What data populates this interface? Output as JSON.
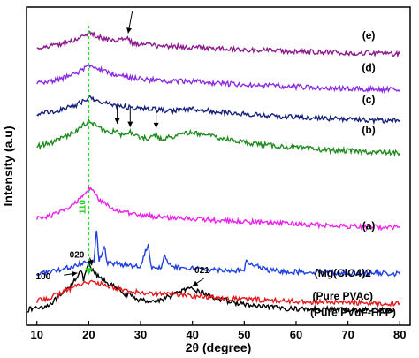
{
  "chart_data": {
    "type": "line",
    "xlabel": "2θ (degree)",
    "ylabel": "Intensity (a.u)",
    "xlim": [
      8,
      82
    ],
    "xticks": [
      10,
      20,
      30,
      40,
      50,
      60,
      70,
      80
    ],
    "y_ticks_shown": false,
    "grid": false,
    "legend": "none",
    "series": [
      {
        "name": "(Pure PVdF-HFP)",
        "color": "#000000",
        "x": [
          8,
          12,
          15,
          17,
          18.4,
          19,
          20,
          21,
          22,
          24,
          27,
          30,
          33,
          36,
          38,
          40,
          42,
          45,
          48,
          50,
          53,
          56,
          60,
          65,
          70,
          75,
          79
        ],
        "y": [
          0.2,
          0.6,
          1.6,
          2.8,
          3.8,
          3.0,
          4.4,
          3.6,
          3.2,
          2.6,
          1.7,
          1.1,
          1.0,
          1.5,
          2.0,
          2.1,
          1.8,
          1.2,
          0.9,
          0.7,
          0.5,
          0.4,
          0.3,
          0.3,
          0.2,
          0.2,
          0.1
        ]
      },
      {
        "name": "(Pure PVAc)",
        "color": "#e41a1c",
        "x": [
          10,
          14,
          17,
          19,
          20,
          21,
          23,
          26,
          30,
          35,
          40,
          45,
          50,
          55,
          60,
          65,
          70,
          75,
          80
        ],
        "y": [
          1.0,
          1.6,
          2.3,
          2.7,
          2.8,
          2.7,
          2.5,
          2.1,
          1.8,
          1.7,
          1.5,
          1.3,
          1.2,
          1.1,
          1.0,
          0.9,
          0.9,
          0.8,
          0.8
        ]
      },
      {
        "name": "(Mg(ClO4)2",
        "color": "#1f3fe0",
        "x": [
          10,
          14,
          17,
          19,
          20,
          21,
          21.5,
          22,
          23,
          23.5,
          24,
          26,
          28,
          30,
          31.5,
          32,
          33,
          34,
          34.5,
          36,
          40,
          45,
          50,
          50.2,
          55,
          60,
          65,
          70,
          75,
          80
        ],
        "y": [
          3.5,
          3.8,
          4.2,
          4.6,
          4.7,
          4.6,
          7.6,
          4.6,
          6.1,
          4.6,
          4.5,
          4.4,
          4.3,
          4.2,
          6.4,
          4.2,
          4.2,
          4.1,
          5.2,
          4.1,
          4.0,
          3.9,
          3.8,
          4.6,
          3.8,
          3.7,
          3.7,
          3.6,
          3.6,
          3.5
        ]
      },
      {
        "name": "(a)",
        "color": "#ee22ee",
        "x": [
          10,
          13,
          16,
          18,
          19,
          20,
          21,
          22,
          24,
          27,
          30,
          35,
          40,
          45,
          50,
          55,
          60,
          65,
          70,
          75,
          80
        ],
        "y": [
          8.6,
          8.9,
          9.5,
          10.3,
          10.9,
          11.4,
          11.0,
          10.3,
          9.6,
          9.1,
          8.9,
          8.7,
          8.6,
          8.4,
          8.3,
          8.2,
          8.1,
          8.0,
          7.9,
          7.8,
          7.8
        ]
      },
      {
        "name": "(b)",
        "color": "#1f8c1f",
        "x": [
          10,
          13,
          16,
          18,
          19,
          20,
          21,
          22,
          24,
          25.5,
          26,
          28,
          30,
          32,
          33,
          33.5,
          35,
          38,
          40,
          42,
          45,
          50,
          55,
          60,
          65,
          70,
          75,
          80
        ],
        "y": [
          15.2,
          15.6,
          16.2,
          16.8,
          17.2,
          17.5,
          17.3,
          16.9,
          16.4,
          16.8,
          16.3,
          16.5,
          16.0,
          16.0,
          16.4,
          15.9,
          16.0,
          16.3,
          16.5,
          16.3,
          16.0,
          15.6,
          15.3,
          15.1,
          14.9,
          14.8,
          14.7,
          14.6
        ]
      },
      {
        "name": "(c)",
        "color": "#15207c",
        "x": [
          10,
          14,
          17,
          19,
          20,
          21,
          23,
          26,
          30,
          35,
          40,
          45,
          50,
          55,
          60,
          65,
          70,
          75,
          80
        ],
        "y": [
          18.2,
          18.5,
          18.9,
          19.4,
          19.7,
          19.5,
          19.2,
          18.9,
          18.7,
          18.5,
          18.6,
          18.4,
          18.2,
          18.0,
          17.9,
          17.8,
          17.7,
          17.6,
          17.6
        ]
      },
      {
        "name": "(d)",
        "color": "#8a2be2",
        "x": [
          10,
          14,
          17,
          19,
          20,
          21,
          23,
          26,
          30,
          35,
          40,
          45,
          50,
          55,
          60,
          65,
          70,
          75,
          80
        ],
        "y": [
          21.0,
          21.3,
          21.8,
          22.3,
          22.7,
          22.5,
          22.1,
          21.7,
          21.4,
          21.2,
          21.2,
          21.0,
          20.9,
          20.8,
          20.7,
          20.6,
          20.5,
          20.5,
          20.4
        ]
      },
      {
        "name": "(e)",
        "color": "#8b1a8b",
        "x": [
          10,
          14,
          17,
          19,
          20,
          21,
          23,
          26,
          27.5,
          28,
          30,
          35,
          40,
          45,
          50,
          55,
          60,
          65,
          70,
          75,
          80
        ],
        "y": [
          24.3,
          24.5,
          24.9,
          25.3,
          25.6,
          25.5,
          25.1,
          24.9,
          25.3,
          24.8,
          24.6,
          24.4,
          24.3,
          24.2,
          24.1,
          24.0,
          23.9,
          23.9,
          23.8,
          23.8,
          23.7
        ]
      }
    ],
    "annotations": {
      "peak_110": "110",
      "peak_020": "020",
      "peak_100": "100",
      "peak_021": "021"
    },
    "y_range": [
      -1.2,
      28
    ]
  }
}
